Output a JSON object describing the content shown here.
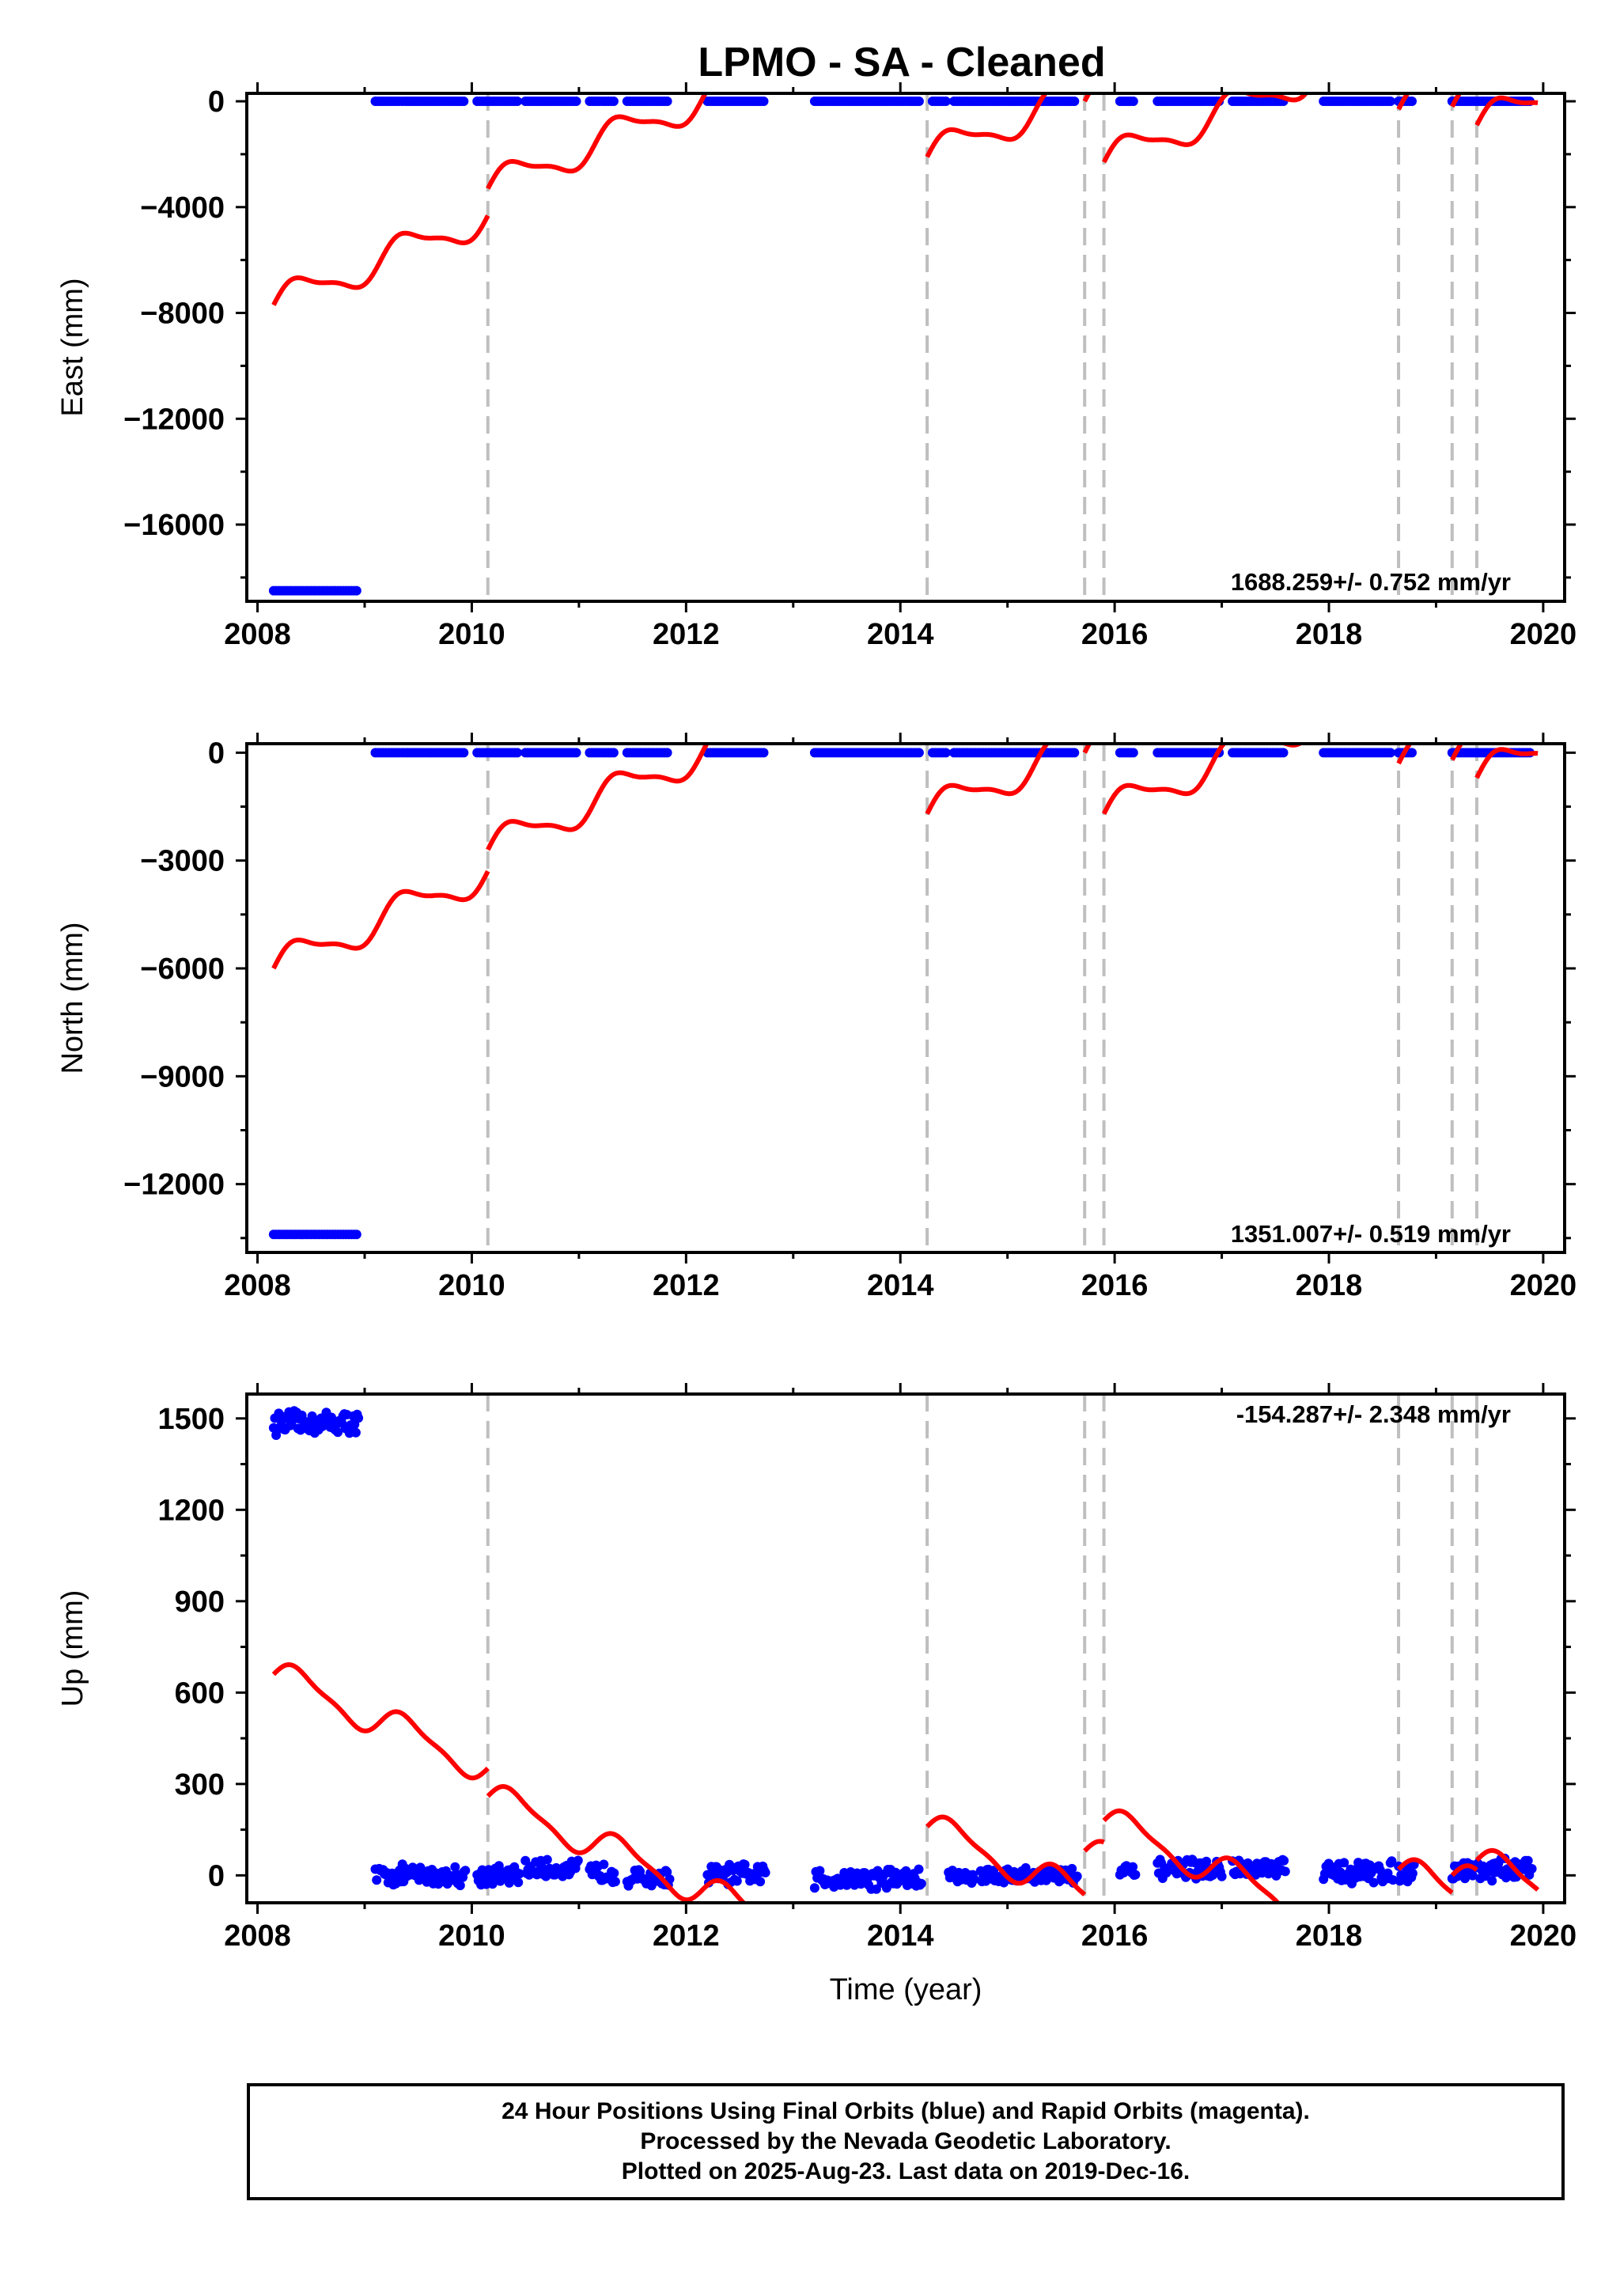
{
  "title": "LPMO  - SA - Cleaned",
  "colors": {
    "fit": "#ff0000",
    "data": "#0000ff",
    "event_line": "#bfbfbf",
    "axes": "#000000"
  },
  "event_lines": [
    2010.15,
    2014.25,
    2015.72,
    2015.9,
    2018.65,
    2019.15,
    2019.38
  ],
  "chart_data": [
    {
      "type": "scatter",
      "panel": "east",
      "ylabel": "East (mm)",
      "xlabel": "",
      "xlim": [
        2007.9,
        2020.2
      ],
      "ylim": [
        -18900,
        300
      ],
      "xticks": [
        2008,
        2010,
        2012,
        2014,
        2016,
        2018,
        2020
      ],
      "yticks": [
        0,
        -4000,
        -8000,
        -12000,
        -16000
      ],
      "rate_label": "1688.259+/- 0.752 mm/yr",
      "data_segments": [
        {
          "x": [
            2008.15,
            2008.95
          ],
          "y": -18500
        },
        {
          "x": [
            2009.1,
            2009.95
          ],
          "y": 0
        },
        {
          "x": [
            2010.05,
            2010.45
          ],
          "y": 0
        },
        {
          "x": [
            2010.5,
            2011.0
          ],
          "y": 0
        },
        {
          "x": [
            2011.1,
            2011.35
          ],
          "y": 0
        },
        {
          "x": [
            2011.45,
            2011.85
          ],
          "y": 0
        },
        {
          "x": [
            2012.2,
            2012.75
          ],
          "y": 0
        },
        {
          "x": [
            2013.2,
            2014.2
          ],
          "y": 0
        },
        {
          "x": [
            2014.3,
            2014.45
          ],
          "y": 0
        },
        {
          "x": [
            2014.5,
            2015.65
          ],
          "y": 0
        },
        {
          "x": [
            2016.05,
            2016.2
          ],
          "y": 0
        },
        {
          "x": [
            2016.4,
            2017.0
          ],
          "y": 0
        },
        {
          "x": [
            2017.1,
            2017.6
          ],
          "y": 0
        },
        {
          "x": [
            2017.95,
            2018.6
          ],
          "y": 0
        },
        {
          "x": [
            2018.65,
            2018.8
          ],
          "y": 0
        },
        {
          "x": [
            2019.15,
            2019.9
          ],
          "y": 0
        }
      ],
      "fit": {
        "segments": [
          {
            "x0": 2008.15,
            "x1": 2010.15,
            "slope": 1688.259,
            "y0": -7700,
            "amp": 600
          },
          {
            "x0": 2010.15,
            "x1": 2014.25,
            "slope": 1688.259,
            "y0": -3300,
            "amp": 600
          },
          {
            "x0": 2014.25,
            "x1": 2015.72,
            "slope": 1688.259,
            "y0": -2100,
            "amp": 600
          },
          {
            "x0": 2015.72,
            "x1": 2015.9,
            "slope": 1688.259,
            "y0": 0,
            "amp": 600
          },
          {
            "x0": 2015.9,
            "x1": 2018.65,
            "slope": 1688.259,
            "y0": -2300,
            "amp": 600
          },
          {
            "x0": 2018.65,
            "x1": 2019.15,
            "slope": 1688.259,
            "y0": -300,
            "amp": 600
          },
          {
            "x0": 2019.15,
            "x1": 2019.38,
            "slope": 1688.259,
            "y0": -200,
            "amp": 600
          },
          {
            "x0": 2019.38,
            "x1": 2019.95,
            "slope": 1688.259,
            "y0": -900,
            "amp": 600
          }
        ]
      }
    },
    {
      "type": "scatter",
      "panel": "north",
      "ylabel": "North (mm)",
      "xlabel": "",
      "xlim": [
        2007.9,
        2020.2
      ],
      "ylim": [
        -13900,
        250
      ],
      "xticks": [
        2008,
        2010,
        2012,
        2014,
        2016,
        2018,
        2020
      ],
      "yticks": [
        0,
        -3000,
        -6000,
        -9000,
        -12000
      ],
      "rate_label": "1351.007+/- 0.519 mm/yr",
      "data_segments": [
        {
          "x": [
            2008.15,
            2008.95
          ],
          "y": -13400
        },
        {
          "x": [
            2009.1,
            2009.95
          ],
          "y": 0
        },
        {
          "x": [
            2010.05,
            2010.45
          ],
          "y": 0
        },
        {
          "x": [
            2010.5,
            2011.0
          ],
          "y": 0
        },
        {
          "x": [
            2011.1,
            2011.35
          ],
          "y": 0
        },
        {
          "x": [
            2011.45,
            2011.85
          ],
          "y": 0
        },
        {
          "x": [
            2012.2,
            2012.75
          ],
          "y": 0
        },
        {
          "x": [
            2013.2,
            2014.2
          ],
          "y": 0
        },
        {
          "x": [
            2014.3,
            2014.45
          ],
          "y": 0
        },
        {
          "x": [
            2014.5,
            2015.65
          ],
          "y": 0
        },
        {
          "x": [
            2016.05,
            2016.2
          ],
          "y": 0
        },
        {
          "x": [
            2016.4,
            2017.0
          ],
          "y": 0
        },
        {
          "x": [
            2017.1,
            2017.6
          ],
          "y": 0
        },
        {
          "x": [
            2017.95,
            2018.6
          ],
          "y": 0
        },
        {
          "x": [
            2018.65,
            2018.8
          ],
          "y": 0
        },
        {
          "x": [
            2019.15,
            2019.9
          ],
          "y": 0
        }
      ],
      "fit": {
        "segments": [
          {
            "x0": 2008.15,
            "x1": 2010.15,
            "slope": 1351.007,
            "y0": -6000,
            "amp": 450
          },
          {
            "x0": 2010.15,
            "x1": 2014.25,
            "slope": 1351.007,
            "y0": -2700,
            "amp": 450
          },
          {
            "x0": 2014.25,
            "x1": 2015.72,
            "slope": 1351.007,
            "y0": -1700,
            "amp": 450
          },
          {
            "x0": 2015.72,
            "x1": 2015.9,
            "slope": 1351.007,
            "y0": 0,
            "amp": 450
          },
          {
            "x0": 2015.9,
            "x1": 2018.65,
            "slope": 1351.007,
            "y0": -1700,
            "amp": 450
          },
          {
            "x0": 2018.65,
            "x1": 2019.15,
            "slope": 1351.007,
            "y0": -300,
            "amp": 450
          },
          {
            "x0": 2019.15,
            "x1": 2019.38,
            "slope": 1351.007,
            "y0": -200,
            "amp": 450
          },
          {
            "x0": 2019.38,
            "x1": 2019.95,
            "slope": 1351.007,
            "y0": -700,
            "amp": 450
          }
        ]
      }
    },
    {
      "type": "scatter",
      "panel": "up",
      "ylabel": "Up (mm)",
      "xlabel": "Time (year)",
      "xlim": [
        2007.9,
        2020.2
      ],
      "ylim": [
        -90,
        1580
      ],
      "xticks": [
        2008,
        2010,
        2012,
        2014,
        2016,
        2018,
        2020
      ],
      "yticks": [
        1500,
        1200,
        900,
        600,
        300,
        0
      ],
      "rate_label": "-154.287+/- 2.348 mm/yr",
      "data_clusters": [
        {
          "x": [
            2008.15,
            2008.95
          ],
          "center": 1485,
          "spread": 60
        },
        {
          "x": [
            2009.1,
            2009.95
          ],
          "center": 0,
          "spread": 55
        },
        {
          "x": [
            2010.05,
            2010.45
          ],
          "center": 0,
          "spread": 50
        },
        {
          "x": [
            2010.5,
            2011.0
          ],
          "center": 20,
          "spread": 50
        },
        {
          "x": [
            2011.1,
            2011.35
          ],
          "center": 10,
          "spread": 50
        },
        {
          "x": [
            2011.45,
            2011.85
          ],
          "center": -10,
          "spread": 50
        },
        {
          "x": [
            2012.2,
            2012.75
          ],
          "center": 0,
          "spread": 60
        },
        {
          "x": [
            2013.2,
            2014.2
          ],
          "center": -10,
          "spread": 60
        },
        {
          "x": [
            2014.45,
            2014.7
          ],
          "center": -5,
          "spread": 40
        },
        {
          "x": [
            2014.75,
            2015.65
          ],
          "center": 0,
          "spread": 45
        },
        {
          "x": [
            2016.05,
            2016.2
          ],
          "center": 10,
          "spread": 40
        },
        {
          "x": [
            2016.4,
            2017.0
          ],
          "center": 20,
          "spread": 50
        },
        {
          "x": [
            2017.1,
            2017.6
          ],
          "center": 20,
          "spread": 50
        },
        {
          "x": [
            2017.95,
            2018.6
          ],
          "center": 10,
          "spread": 60
        },
        {
          "x": [
            2018.65,
            2018.8
          ],
          "center": 10,
          "spread": 50
        },
        {
          "x": [
            2019.15,
            2019.9
          ],
          "center": 20,
          "spread": 60
        }
      ],
      "fit": {
        "segments": [
          {
            "x0": 2008.15,
            "x1": 2010.15,
            "slope": -154.287,
            "y0": 660,
            "amp": 50
          },
          {
            "x0": 2010.15,
            "x1": 2014.25,
            "slope": -154.287,
            "y0": 260,
            "amp": 50
          },
          {
            "x0": 2014.25,
            "x1": 2015.72,
            "slope": -154.287,
            "y0": 160,
            "amp": 50
          },
          {
            "x0": 2015.72,
            "x1": 2015.9,
            "slope": -154.287,
            "y0": 80,
            "amp": 50
          },
          {
            "x0": 2015.9,
            "x1": 2018.65,
            "slope": -154.287,
            "y0": 180,
            "amp": 50
          },
          {
            "x0": 2018.65,
            "x1": 2019.15,
            "slope": -154.287,
            "y0": 20,
            "amp": 50
          },
          {
            "x0": 2019.15,
            "x1": 2019.38,
            "slope": -154.287,
            "y0": 0,
            "amp": 50
          },
          {
            "x0": 2019.38,
            "x1": 2019.95,
            "slope": -154.287,
            "y0": 50,
            "amp": 50
          }
        ]
      }
    }
  ],
  "footer": {
    "line1": "24 Hour Positions Using Final Orbits (blue) and Rapid Orbits (magenta).",
    "line2": "Processed by the Nevada Geodetic Laboratory.",
    "line3": "Plotted on 2025-Aug-23. Last data on 2019-Dec-16."
  }
}
